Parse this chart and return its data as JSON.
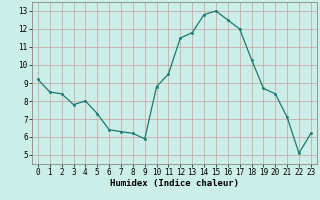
{
  "x": [
    0,
    1,
    2,
    3,
    4,
    5,
    6,
    7,
    8,
    9,
    10,
    11,
    12,
    13,
    14,
    15,
    16,
    17,
    18,
    19,
    20,
    21,
    22,
    23
  ],
  "y": [
    9.2,
    8.5,
    8.4,
    7.8,
    8.0,
    7.3,
    6.4,
    6.3,
    6.2,
    5.9,
    8.8,
    9.5,
    11.5,
    11.8,
    12.8,
    13.0,
    12.5,
    12.0,
    10.3,
    8.7,
    8.4,
    7.1,
    5.1,
    6.2
  ],
  "xlabel": "Humidex (Indice chaleur)",
  "xlim": [
    -0.5,
    23.5
  ],
  "ylim": [
    4.5,
    13.5
  ],
  "yticks": [
    5,
    6,
    7,
    8,
    9,
    10,
    11,
    12,
    13
  ],
  "xticks": [
    0,
    1,
    2,
    3,
    4,
    5,
    6,
    7,
    8,
    9,
    10,
    11,
    12,
    13,
    14,
    15,
    16,
    17,
    18,
    19,
    20,
    21,
    22,
    23
  ],
  "line_color": "#1a7a6e",
  "marker_color": "#1a7a6e",
  "bg_color": "#cceee8",
  "grid_color_v": "#c8a0a0",
  "grid_color_h": "#c8a0a0",
  "label_fontsize": 6.5,
  "tick_fontsize": 5.5
}
